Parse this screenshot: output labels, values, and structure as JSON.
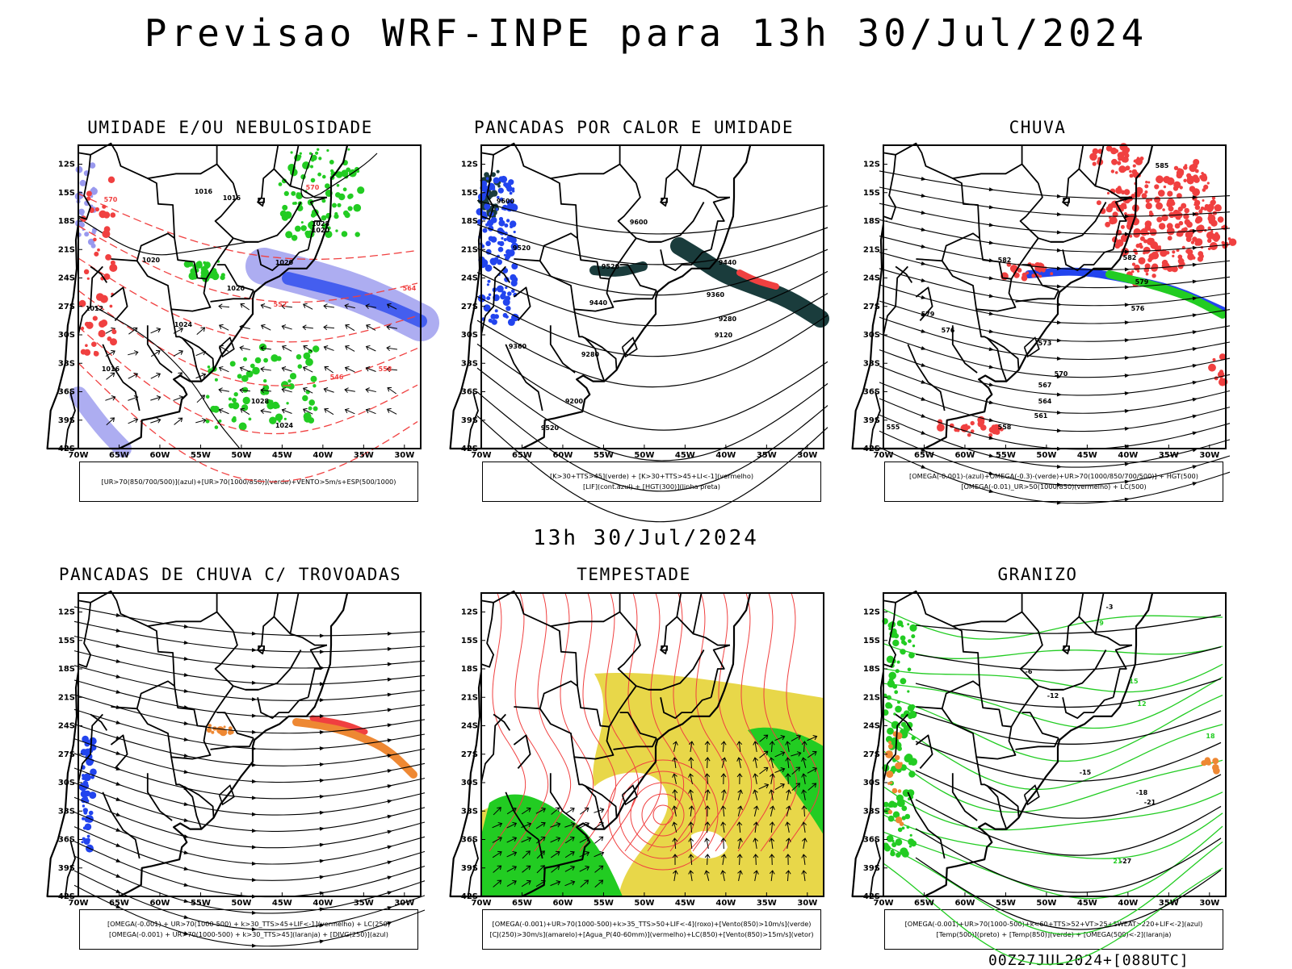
{
  "header": {
    "title": "Previsao WRF-INPE  para 13h 30/Jul/2024",
    "subtitle": "13h 30/Jul/2024",
    "footer": "00Z27JUL2024+[088UTC]"
  },
  "axes": {
    "lat_labels": [
      "12S",
      "15S",
      "18S",
      "21S",
      "24S",
      "27S",
      "30S",
      "33S",
      "36S",
      "39S",
      "42S"
    ],
    "lon_labels": [
      "70W",
      "65W",
      "60W",
      "55W",
      "50W",
      "45W",
      "40W",
      "35W",
      "30W"
    ],
    "lat_range": [
      -42,
      -10
    ],
    "lon_range": [
      -70,
      -28
    ]
  },
  "colors": {
    "red": "#f04040",
    "green": "#22cc22",
    "blue": "#2244ee",
    "lavender": "#9999ee",
    "dark_teal": "#1a3c3c",
    "yellow": "#e6d43a",
    "orange": "#ee8833",
    "black": "#000000"
  },
  "panels": [
    {
      "id": "umidade",
      "title": "UMIDADE E/OU NEBULOSIDADE",
      "legend": [
        "[UR>70(850/700/500)](azul)+[UR>70(1000/850)](verde)+VENTO>5m/s+ESP(500/1000)"
      ],
      "contour_labels": [
        "1016",
        "1016",
        "1020",
        "1020",
        "1020",
        "1020",
        "1028",
        "1024",
        "1016",
        "1012",
        "1028",
        "1024",
        "570",
        "570",
        "564",
        "558",
        "552",
        "546"
      ]
    },
    {
      "id": "pancadas-calor",
      "title": "PANCADAS POR CALOR E UMIDADE",
      "legend": [
        "[K>30+TTS>45](verde) + [K>30+TTS>45+LI<-1](vermelho)",
        "[LIF](cont.azul) + [HGT(300)](linha preta)"
      ],
      "contour_labels": [
        "9600",
        "9600",
        "9520",
        "9520",
        "9440",
        "9360",
        "9280",
        "9200",
        "9520",
        "9440",
        "9360",
        "9280",
        "9120"
      ]
    },
    {
      "id": "chuva",
      "title": "CHUVA",
      "legend": [
        "[OMEGA(-0.001)-(azul)+OMEGA(-0.3)-(verde)+UR>70(1000/850/700/500)] + HGT(500)",
        "[OMEGA(-0.01)_UR>50(1000/850)(vermelho) + LC(500)"
      ],
      "contour_labels": [
        "585",
        "582",
        "579",
        "576",
        "573",
        "570",
        "567",
        "564",
        "561",
        "558",
        "555",
        "582",
        "579",
        "576"
      ]
    },
    {
      "id": "pancadas-trovoadas",
      "title": "PANCADAS DE CHUVA C/ TROVOADAS",
      "legend": [
        "[OMEGA(-0.001) + UR>70(1000-500) + k>30_TTS>45+LIF<-1](vermelho) + LC(250)",
        "[OMEGA(-0.001) + UR>70(1000-500) + k>30_TTS>45](laranja) + [DIVG(250)](azul)"
      ],
      "contour_labels": []
    },
    {
      "id": "tempestade",
      "title": "TEMPESTADE",
      "legend": [
        "[OMEGA(-0.001)+UR>70(1000-500)+k>35_TTS>50+LIF<-4](roxo)+[Vento(850)>10m/s](verde)",
        "[CJ(250)>30m/s](amarelo)+[Agua_P(40-60mm)](vermelho)+LC(850)+[Vento(850)>15m/s](vetor)"
      ],
      "contour_labels": []
    },
    {
      "id": "granizo",
      "title": "GRANIZO",
      "legend": [
        "[OMEGA(-0.001)+UR>70(1000-500)+k<60+TTS>52+VT>25+SWEAT>220+LIF<-2](azul)",
        "[Temp(500)](preto) + [Temp(850)](verde) + [OMEGA(500)<-2](laranja)"
      ],
      "contour_labels": [
        "-3",
        "-6",
        "-12",
        "-15",
        "-18",
        "-21",
        "-27",
        "9",
        "12",
        "15",
        "18",
        "21"
      ]
    }
  ]
}
